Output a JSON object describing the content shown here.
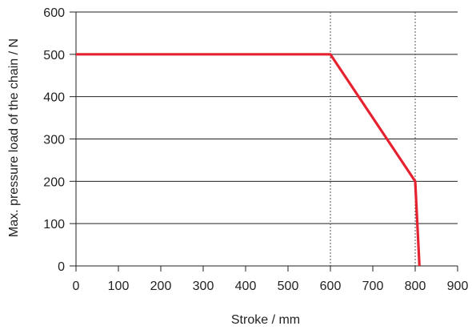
{
  "chart_data": {
    "type": "line",
    "title": "",
    "xlabel": "Stroke / mm",
    "ylabel": "Max. pressure load of the chain / N",
    "xlim": [
      0,
      900
    ],
    "ylim": [
      0,
      600
    ],
    "x_ticks": [
      0,
      100,
      200,
      300,
      400,
      500,
      600,
      700,
      800,
      900
    ],
    "y_ticks": [
      0,
      100,
      200,
      300,
      400,
      500,
      600
    ],
    "x_tick_labels": [
      "0",
      "100",
      "200",
      "300",
      "400",
      "500",
      "600",
      "700",
      "800",
      "900"
    ],
    "y_tick_labels": [
      "0",
      "100",
      "200",
      "300",
      "400",
      "500",
      "600"
    ],
    "grid": "horizontal",
    "reference_lines_x": [
      600,
      800
    ],
    "series": [
      {
        "color": "#e52330",
        "x": [
          0,
          600,
          800,
          810
        ],
        "y": [
          500,
          500,
          200,
          0
        ]
      }
    ]
  }
}
